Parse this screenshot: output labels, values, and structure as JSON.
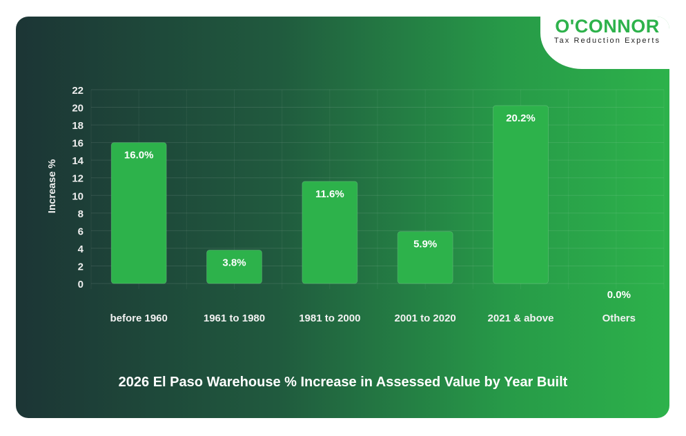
{
  "logo": {
    "brand": "O'CONNOR",
    "tagline": "Tax Reduction Experts"
  },
  "colors": {
    "bar": "#2db24b",
    "background_start": "#1c3535",
    "background_end": "#2db24b"
  },
  "chart_data": {
    "type": "bar",
    "title": "2026 El Paso Warehouse % Increase in Assessed Value by Year Built",
    "xlabel": "",
    "ylabel": "Increase %",
    "categories": [
      "before 1960",
      "1961 to 1980",
      "1981 to 2000",
      "2001 to 2020",
      "2021 & above",
      "Others"
    ],
    "values": [
      16.0,
      3.8,
      11.6,
      5.9,
      20.2,
      0.0
    ],
    "data_labels": [
      "16.0%",
      "3.8%",
      "11.6%",
      "5.9%",
      "20.2%",
      "0.0%"
    ],
    "ylim": [
      0,
      22
    ],
    "yticks": [
      0,
      2,
      4,
      6,
      8,
      10,
      12,
      14,
      16,
      18,
      20,
      22
    ],
    "grid": true
  }
}
